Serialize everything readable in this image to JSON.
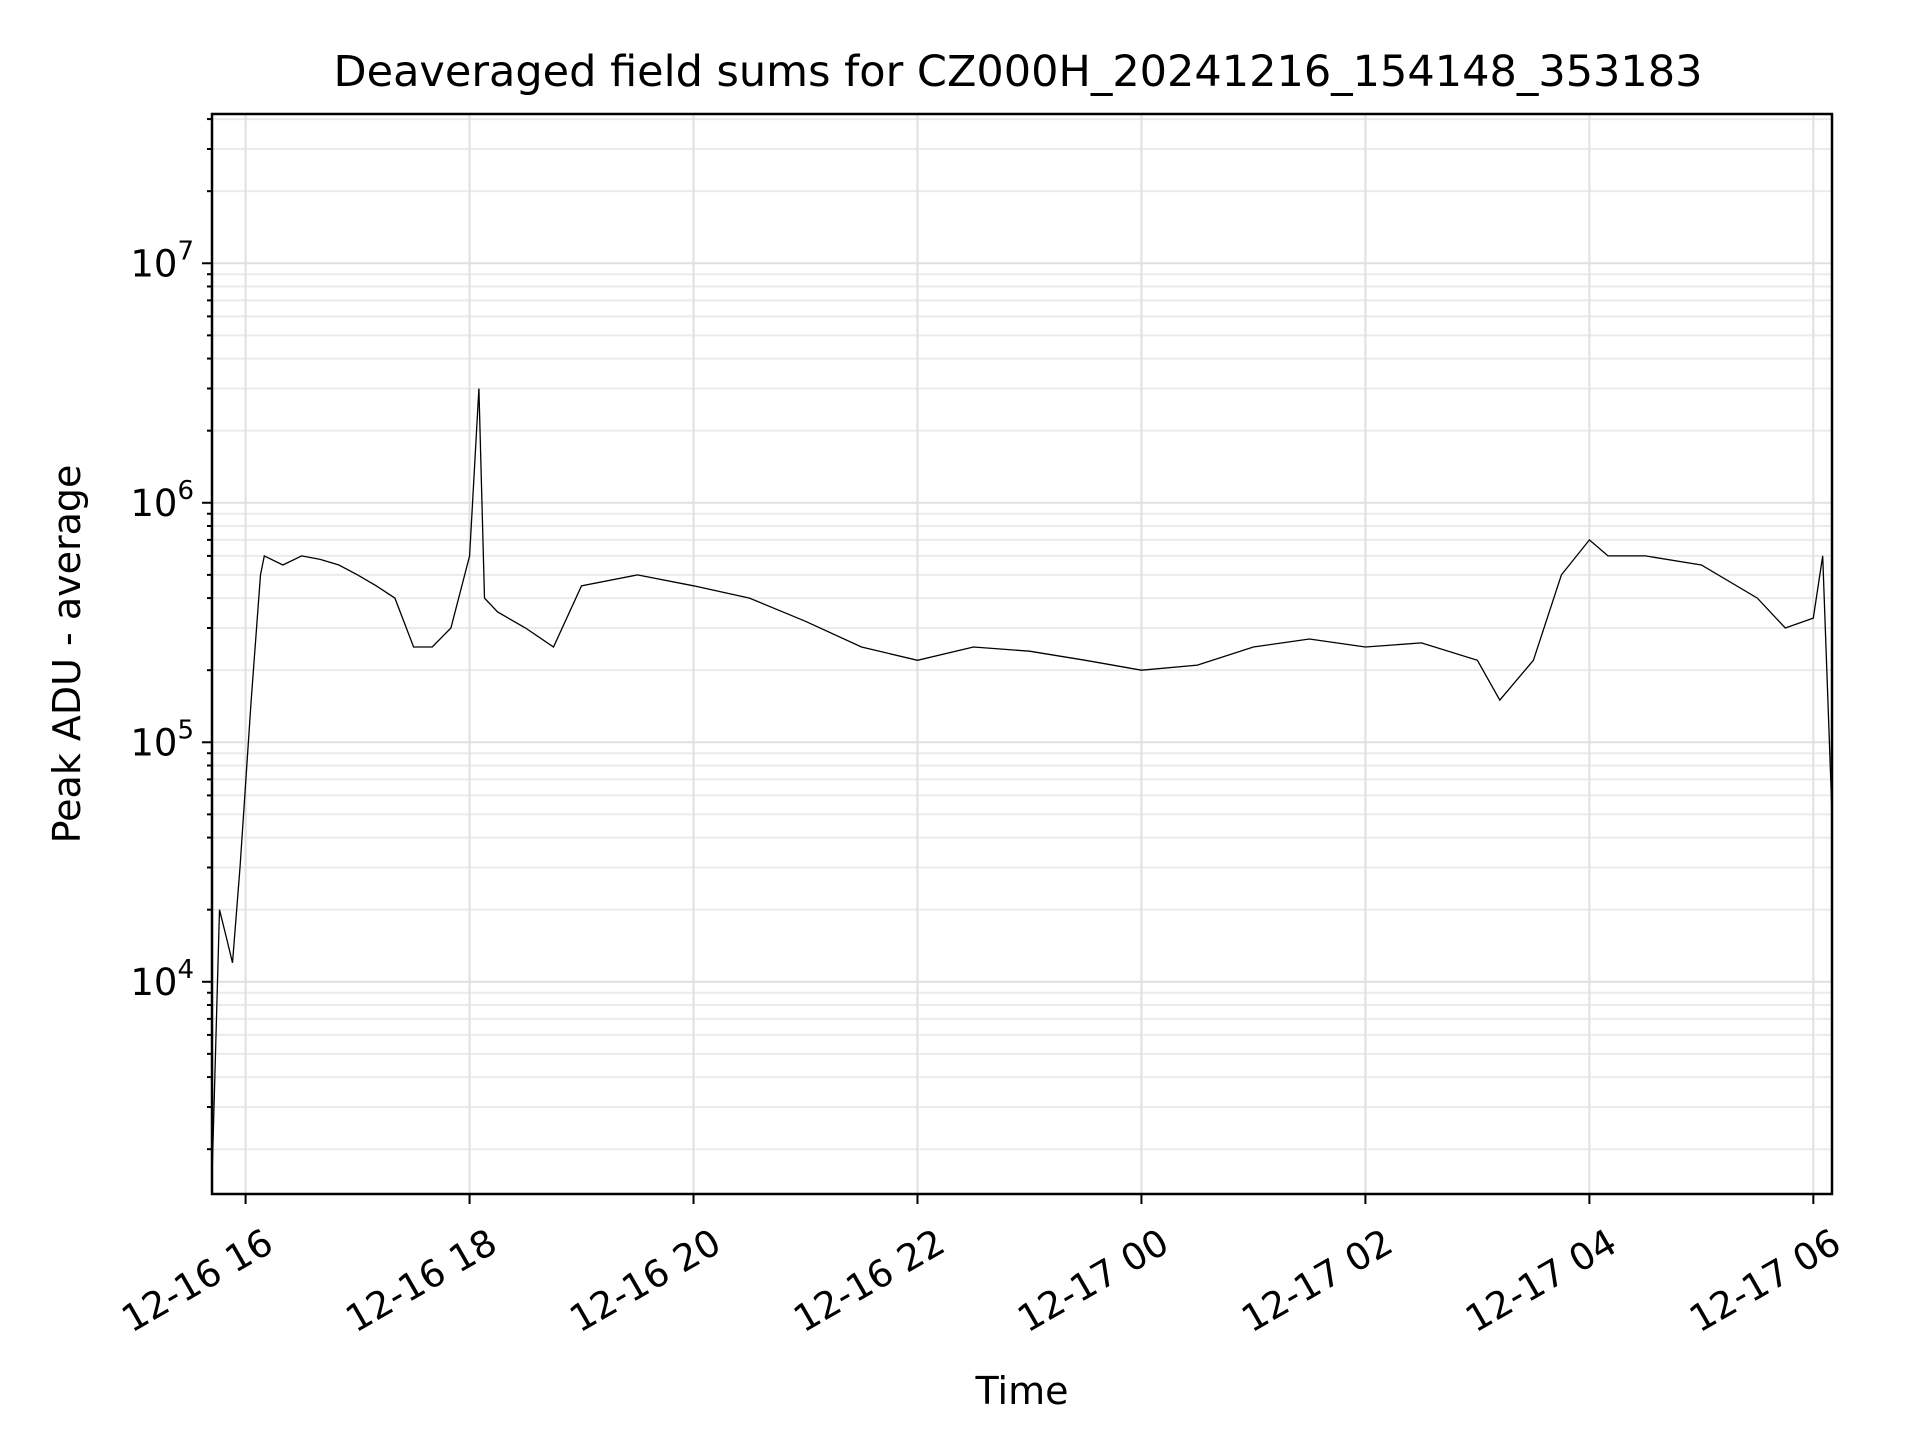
{
  "chart_data": {
    "type": "line",
    "title": "Deaveraged field sums for CZ000H_20241216_154148_353183",
    "xlabel": "Time",
    "ylabel": "Peak ADU - average",
    "yscale": "log",
    "grid": true,
    "xlim": [
      "2024-12-16 15:42",
      "2024-12-17 06:10"
    ],
    "ylim": [
      1300,
      42000000
    ],
    "xticks": [
      {
        "value": "2024-12-16 16:00",
        "label": "12-16 16"
      },
      {
        "value": "2024-12-16 18:00",
        "label": "12-16 18"
      },
      {
        "value": "2024-12-16 20:00",
        "label": "12-16 20"
      },
      {
        "value": "2024-12-16 22:00",
        "label": "12-16 22"
      },
      {
        "value": "2024-12-17 00:00",
        "label": "12-17 00"
      },
      {
        "value": "2024-12-17 02:00",
        "label": "12-17 02"
      },
      {
        "value": "2024-12-17 04:00",
        "label": "12-17 04"
      },
      {
        "value": "2024-12-17 06:00",
        "label": "12-17 06"
      }
    ],
    "yticks": [
      {
        "value": 10000,
        "base": "10",
        "exp": "4"
      },
      {
        "value": 100000,
        "base": "10",
        "exp": "5"
      },
      {
        "value": 1000000,
        "base": "10",
        "exp": "6"
      },
      {
        "value": 10000000,
        "base": "10",
        "exp": "7"
      }
    ],
    "series": [
      {
        "color": "#000000",
        "x": [
          "2024-12-16 15:42",
          "2024-12-16 15:46",
          "2024-12-16 15:50",
          "2024-12-16 15:53",
          "2024-12-16 15:57",
          "2024-12-16 16:03",
          "2024-12-16 16:08",
          "2024-12-16 16:10",
          "2024-12-16 16:20",
          "2024-12-16 16:30",
          "2024-12-16 16:40",
          "2024-12-16 16:50",
          "2024-12-16 17:00",
          "2024-12-16 17:10",
          "2024-12-16 17:20",
          "2024-12-16 17:30",
          "2024-12-16 17:40",
          "2024-12-16 17:50",
          "2024-12-16 18:00",
          "2024-12-16 18:05",
          "2024-12-16 18:08",
          "2024-12-16 18:15",
          "2024-12-16 18:30",
          "2024-12-16 18:45",
          "2024-12-16 19:00",
          "2024-12-16 19:30",
          "2024-12-16 20:00",
          "2024-12-16 20:30",
          "2024-12-16 21:00",
          "2024-12-16 21:30",
          "2024-12-16 22:00",
          "2024-12-16 22:30",
          "2024-12-16 23:00",
          "2024-12-16 23:30",
          "2024-12-17 00:00",
          "2024-12-17 00:30",
          "2024-12-17 01:00",
          "2024-12-17 01:30",
          "2024-12-17 02:00",
          "2024-12-17 02:30",
          "2024-12-17 03:00",
          "2024-12-17 03:12",
          "2024-12-17 03:30",
          "2024-12-17 03:45",
          "2024-12-17 04:00",
          "2024-12-17 04:10",
          "2024-12-17 04:30",
          "2024-12-17 05:00",
          "2024-12-17 05:30",
          "2024-12-17 05:45",
          "2024-12-17 06:00",
          "2024-12-17 06:05",
          "2024-12-17 06:10"
        ],
        "y": [
          1500,
          20000,
          15000,
          12000,
          30000,
          150000,
          500000,
          600000,
          550000,
          600000,
          580000,
          550000,
          500000,
          450000,
          400000,
          250000,
          250000,
          300000,
          600000,
          3000000,
          400000,
          350000,
          300000,
          250000,
          450000,
          500000,
          450000,
          400000,
          320000,
          250000,
          220000,
          250000,
          240000,
          220000,
          200000,
          210000,
          250000,
          270000,
          250000,
          260000,
          220000,
          150000,
          220000,
          500000,
          700000,
          600000,
          600000,
          550000,
          400000,
          300000,
          330000,
          600000,
          50000
        ]
      }
    ]
  }
}
